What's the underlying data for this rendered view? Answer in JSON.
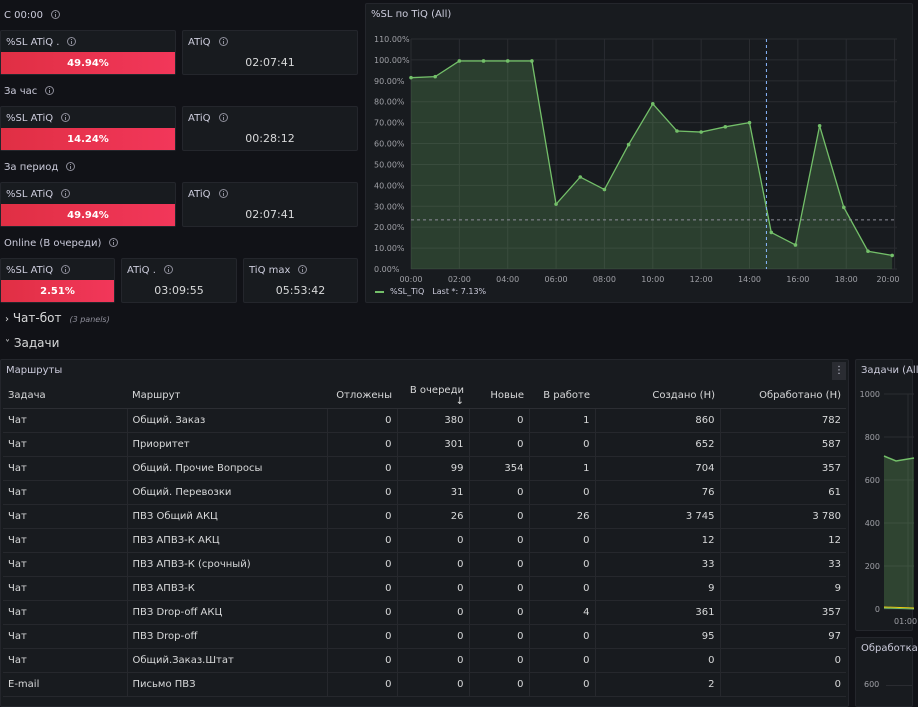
{
  "sections": {
    "since_midnight": "С 00:00",
    "per_hour": "За час",
    "per_period": "За период",
    "online": "Online (В очереди)"
  },
  "stats": {
    "midnight_sl_title": "%SL ATiQ .",
    "midnight_sl_value": "49.94%",
    "midnight_atiq_title": "ATiQ",
    "midnight_atiq_value": "02:07:41",
    "hour_sl_title": "%SL ATiQ",
    "hour_sl_value": "14.24%",
    "hour_atiq_title": "ATiQ",
    "hour_atiq_value": "00:28:12",
    "period_sl_title": "%SL ATiQ",
    "period_sl_value": "49.94%",
    "period_atiq_title": "ATiQ",
    "period_atiq_value": "02:07:41",
    "online_sl_title": "%SL ATiQ",
    "online_sl_value": "2.51%",
    "online_atiq_title": "ATiQ .",
    "online_atiq_value": "03:09:55",
    "online_tiqmax_title": "TiQ max",
    "online_tiqmax_value": "05:53:42"
  },
  "rows": {
    "chatbot": "Чат-бот",
    "chatbot_sub": "(3 panels)",
    "tasks": "Задачи"
  },
  "sl_panel": {
    "title": "%SL по TiQ (All)",
    "legend_name": "%SL_TiQ",
    "legend_last": "Last *: 7.13%"
  },
  "chart_data": {
    "type": "area",
    "title": "%SL по TiQ (All)",
    "x_ticks": [
      "00:00",
      "02:00",
      "04:00",
      "06:00",
      "08:00",
      "10:00",
      "12:00",
      "14:00",
      "16:00",
      "18:00",
      "20:00"
    ],
    "y_ticks": [
      "0.00%",
      "10.00%",
      "20.00%",
      "30.00%",
      "40.00%",
      "50.00%",
      "60.00%",
      "70.00%",
      "80.00%",
      "90.00%",
      "100.00%",
      "110.00%"
    ],
    "ylim": [
      0,
      110
    ],
    "xlim_hours": [
      0,
      20.1
    ],
    "series": [
      {
        "name": "%SL_TiQ",
        "color": "#73bf69",
        "x_hours": [
          0,
          1,
          2,
          3,
          4,
          5,
          6,
          7,
          8,
          9,
          10,
          11,
          12,
          13,
          14,
          14.9,
          15.9,
          16.9,
          17.9,
          18.9,
          19.9
        ],
        "values": [
          91.5,
          92,
          99.5,
          99.5,
          99.5,
          99.5,
          31,
          44,
          38,
          59.5,
          79,
          66,
          65.5,
          68,
          70,
          17.5,
          11.5,
          68.5,
          29.5,
          8.5,
          6.5
        ]
      }
    ],
    "threshold_y": 23.5,
    "crosshair_hour": 14.7
  },
  "routes_panel": {
    "title": "Маршруты",
    "columns": [
      "Задача",
      "Маршрут",
      "Отложены",
      "В очереди",
      "Новые",
      "В работе",
      "Создано (Н)",
      "Обработано (Н)"
    ],
    "sort_indicator": "↓",
    "rows": [
      [
        "Чат",
        "Общий. Заказ",
        "0",
        "380",
        "0",
        "1",
        "860",
        "782"
      ],
      [
        "Чат",
        "Приоритет",
        "0",
        "301",
        "0",
        "0",
        "652",
        "587"
      ],
      [
        "Чат",
        "Общий. Прочие Вопросы",
        "0",
        "99",
        "354",
        "1",
        "704",
        "357"
      ],
      [
        "Чат",
        "Общий. Перевозки",
        "0",
        "31",
        "0",
        "0",
        "76",
        "61"
      ],
      [
        "Чат",
        "ПВЗ Общий АКЦ",
        "0",
        "26",
        "0",
        "26",
        "3 745",
        "3 780"
      ],
      [
        "Чат",
        "ПВЗ АПВЗ-К АКЦ",
        "0",
        "0",
        "0",
        "0",
        "12",
        "12"
      ],
      [
        "Чат",
        "ПВЗ АПВЗ-К (срочный)",
        "0",
        "0",
        "0",
        "0",
        "33",
        "33"
      ],
      [
        "Чат",
        "ПВЗ АПВЗ-К",
        "0",
        "0",
        "0",
        "0",
        "9",
        "9"
      ],
      [
        "Чат",
        "ПВЗ Drop-off АКЦ",
        "0",
        "0",
        "0",
        "4",
        "361",
        "357"
      ],
      [
        "Чат",
        "ПВЗ Drop-off",
        "0",
        "0",
        "0",
        "0",
        "95",
        "97"
      ],
      [
        "Чат",
        "Общий.Заказ.Штат",
        "0",
        "0",
        "0",
        "0",
        "0",
        "0"
      ],
      [
        "E-mail",
        "Письмо ПВЗ",
        "0",
        "0",
        "0",
        "0",
        "2",
        "0"
      ]
    ]
  },
  "tasks_panel": {
    "title": "Задачи (All",
    "y_ticks": [
      "1000",
      "800",
      "600",
      "400",
      "200",
      "0"
    ],
    "x_tick": "01:00"
  },
  "processing_panel": {
    "title": "Обработка",
    "y_tick": "600"
  },
  "colors": {
    "red": "#f2375a",
    "green": "#73bf69",
    "bg": "#111217",
    "panel": "#181b1f"
  }
}
